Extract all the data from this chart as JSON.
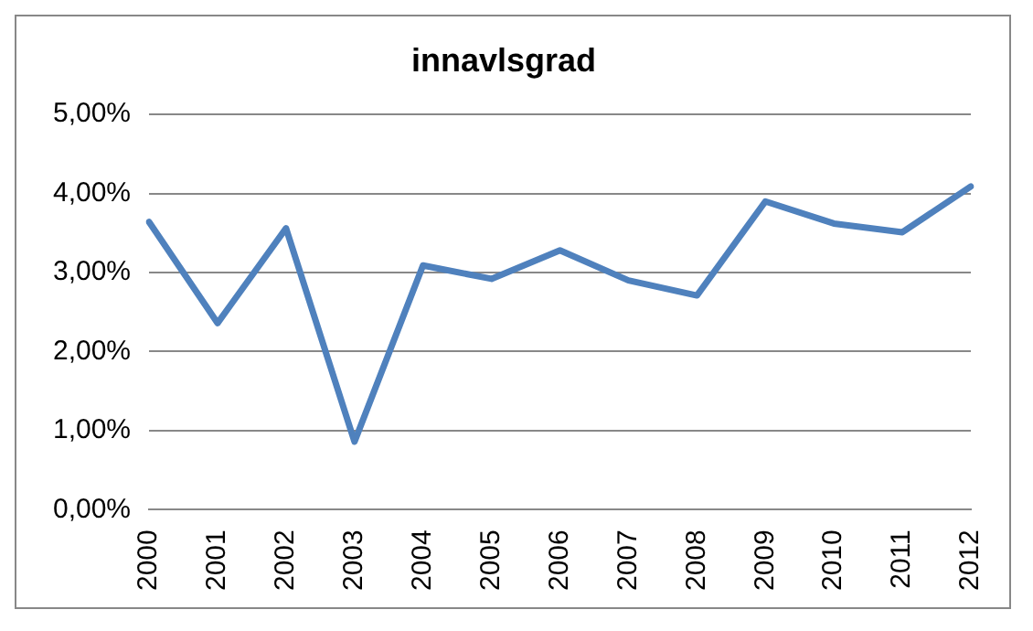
{
  "chart_data": {
    "type": "line",
    "title": "innavlsgrad",
    "categories": [
      "2000",
      "2001",
      "2002",
      "2003",
      "2004",
      "2005",
      "2006",
      "2007",
      "2008",
      "2009",
      "2010",
      "2011",
      "2012"
    ],
    "series": [
      {
        "color": "#4f81bd",
        "values": [
          3.64,
          2.36,
          3.56,
          0.86,
          3.09,
          2.92,
          3.28,
          2.9,
          2.71,
          3.9,
          3.62,
          3.51,
          4.09
        ]
      }
    ],
    "ylim": [
      0,
      5
    ],
    "yticks": [
      {
        "value": 0,
        "label": "0,00%"
      },
      {
        "value": 1,
        "label": "1,00%"
      },
      {
        "value": 2,
        "label": "2,00%"
      },
      {
        "value": 3,
        "label": "3,00%"
      },
      {
        "value": 4,
        "label": "4,00%"
      },
      {
        "value": 5,
        "label": "5,00%"
      }
    ],
    "grid": "y",
    "legend": false,
    "marker": "none",
    "line_style": "solid"
  }
}
